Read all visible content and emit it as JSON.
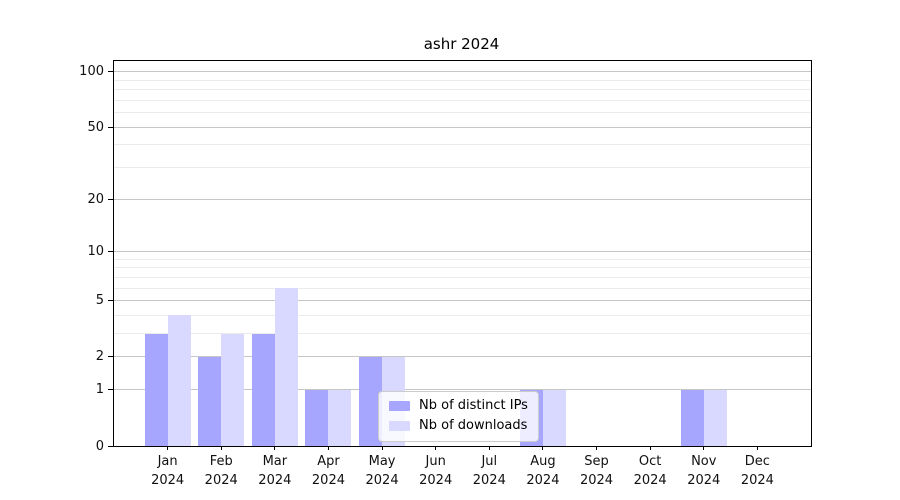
{
  "title": "ashr 2024",
  "chart_data": {
    "type": "bar",
    "title": "ashr 2024",
    "yscale": "log1p",
    "ylim": [
      0,
      114.3
    ],
    "grid": true,
    "legend_position": "lower center",
    "categories": [
      "Jan",
      "Feb",
      "Mar",
      "Apr",
      "May",
      "Jun",
      "Jul",
      "Aug",
      "Sep",
      "Oct",
      "Nov",
      "Dec"
    ],
    "x_year": "2024",
    "series": [
      {
        "name": "Nb of distinct IPs",
        "color": "#a6a6ff",
        "values": [
          3,
          2,
          3,
          1,
          2,
          0,
          0,
          1,
          0,
          0,
          1,
          0
        ]
      },
      {
        "name": "Nb of downloads",
        "color": "#d9d9ff",
        "values": [
          4,
          3,
          6,
          1,
          2,
          0,
          0,
          1,
          0,
          0,
          1,
          0
        ]
      }
    ],
    "y_major_ticks": [
      0,
      1,
      2,
      5,
      10,
      20,
      50,
      100
    ],
    "y_minor_gridlines": [
      3,
      4,
      6,
      7,
      8,
      9,
      30,
      40,
      60,
      70,
      80,
      90
    ]
  },
  "colors": {
    "background": "#ffffff",
    "spine": "#000000",
    "major_grid": "#c6c6c6",
    "minor_grid": "#ebebeb",
    "bar_distinct_ips": "#a6a6ff",
    "bar_downloads": "#d9d9ff",
    "legend_border": "#cccccc",
    "text": "#111111"
  }
}
